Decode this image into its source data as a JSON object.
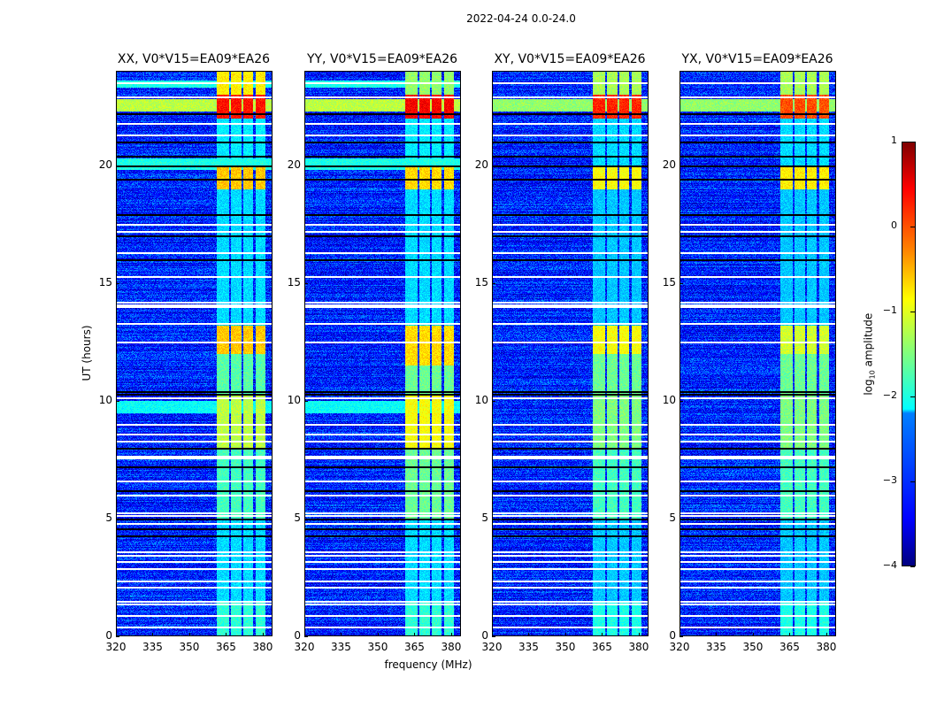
{
  "chart_data": {
    "type": "heatmap",
    "title": "2022-04-24 0.0-24.0",
    "xlabel": "frequency (MHz)",
    "ylabel": "UT (hours)",
    "xlim": [
      320,
      384
    ],
    "ylim": [
      0,
      24
    ],
    "xticks": [
      320,
      335,
      350,
      365,
      380
    ],
    "yticks": [
      0,
      5,
      10,
      15,
      20
    ],
    "colorbar": {
      "label": "log10 amplitude",
      "label_main": "log",
      "label_sub": "10",
      "label_tail": " amplitude",
      "range": [
        -4,
        1
      ],
      "ticks": [
        1,
        0,
        -1,
        -2,
        -3,
        -4
      ],
      "tick_labels": [
        "1",
        "0",
        "−1",
        "−2",
        "−3",
        "−4"
      ],
      "colormap": "jet"
    },
    "background_level": -3.2,
    "rfi_band_mhz": [
      [
        361,
        366
      ],
      [
        367,
        371
      ],
      [
        372,
        376
      ],
      [
        377,
        381
      ]
    ],
    "flagged_rows_white_hours": [
      0.4,
      0.9,
      1.4,
      1.5,
      2.1,
      2.35,
      2.9,
      3.2,
      3.45,
      3.6,
      4.8,
      5.15,
      5.25,
      6.0,
      6.6,
      7.6,
      7.65,
      8.3,
      8.6,
      9.0,
      10.15,
      12.5,
      13.3,
      14.0,
      14.1,
      14.2,
      15.3,
      16.3,
      17.2,
      17.5,
      21.3,
      21.8,
      22.9,
      23.5
    ],
    "flagged_rows_black_hours": [
      4.3,
      4.6,
      5.0,
      6.2,
      7.2,
      8.0,
      10.3,
      10.4,
      16.0,
      17.0,
      17.9,
      19.4,
      20.0,
      20.4,
      21.0,
      22.2
    ],
    "panels": [
      {
        "title": "XX, V0*V15=EA09*EA26",
        "band_levels": [
          [
            0,
            1.5,
            -1.9
          ],
          [
            1.5,
            5,
            -2.3
          ],
          [
            5,
            8,
            -1.8
          ],
          [
            8,
            10.3,
            -1.2
          ],
          [
            10.3,
            12,
            -1.7
          ],
          [
            12,
            13.2,
            -0.6
          ],
          [
            13.2,
            19,
            -2.3
          ],
          [
            19,
            20,
            -0.6
          ],
          [
            20,
            22,
            -2.2
          ],
          [
            22,
            23,
            0.3
          ],
          [
            23,
            24,
            -0.8
          ]
        ],
        "full_row": [
          [
            9.5,
            10,
            -2.1
          ],
          [
            19.8,
            20.3,
            -2.0
          ],
          [
            22.3,
            22.8,
            -1.2
          ],
          [
            23.3,
            23.6,
            -2.0
          ]
        ]
      },
      {
        "title": "YY, V0*V15=EA09*EA26",
        "band_levels": [
          [
            0,
            1.5,
            -1.9
          ],
          [
            1.5,
            5,
            -2.3
          ],
          [
            5,
            8,
            -1.6
          ],
          [
            8,
            10.3,
            -0.9
          ],
          [
            10.3,
            11.5,
            -1.6
          ],
          [
            11.5,
            13.2,
            -0.7
          ],
          [
            13.2,
            19,
            -2.3
          ],
          [
            19,
            20,
            -0.7
          ],
          [
            20,
            22,
            -2.2
          ],
          [
            22,
            23,
            0.4
          ],
          [
            23,
            24,
            -1.4
          ]
        ],
        "full_row": [
          [
            9.5,
            10,
            -2.1
          ],
          [
            19.8,
            20.3,
            -2.0
          ],
          [
            22.3,
            22.8,
            -1.2
          ],
          [
            23.3,
            23.6,
            -2.0
          ]
        ]
      },
      {
        "title": "XY, V0*V15=EA09*EA26",
        "band_levels": [
          [
            0,
            1.5,
            -2.0
          ],
          [
            1.5,
            5,
            -2.4
          ],
          [
            5,
            8,
            -1.8
          ],
          [
            8,
            10.3,
            -1.5
          ],
          [
            10.3,
            12,
            -1.6
          ],
          [
            12,
            13.2,
            -0.9
          ],
          [
            13.2,
            19,
            -2.4
          ],
          [
            19,
            20,
            -0.9
          ],
          [
            20,
            22,
            -2.3
          ],
          [
            22,
            23,
            0.2
          ],
          [
            23,
            24,
            -1.3
          ]
        ],
        "full_row": [
          [
            22.3,
            22.8,
            -1.4
          ]
        ]
      },
      {
        "title": "YX, V0*V15=EA09*EA26",
        "band_levels": [
          [
            0,
            1.5,
            -2.0
          ],
          [
            1.5,
            5,
            -2.4
          ],
          [
            5,
            8,
            -1.8
          ],
          [
            8,
            10.3,
            -1.5
          ],
          [
            10.3,
            12,
            -1.6
          ],
          [
            12,
            13.2,
            -1.1
          ],
          [
            13.2,
            19,
            -2.4
          ],
          [
            19,
            20,
            -0.8
          ],
          [
            20,
            22,
            -2.3
          ],
          [
            22,
            23,
            0.0
          ],
          [
            23,
            24,
            -1.3
          ]
        ],
        "full_row": [
          [
            22.3,
            22.8,
            -1.4
          ]
        ]
      }
    ]
  }
}
